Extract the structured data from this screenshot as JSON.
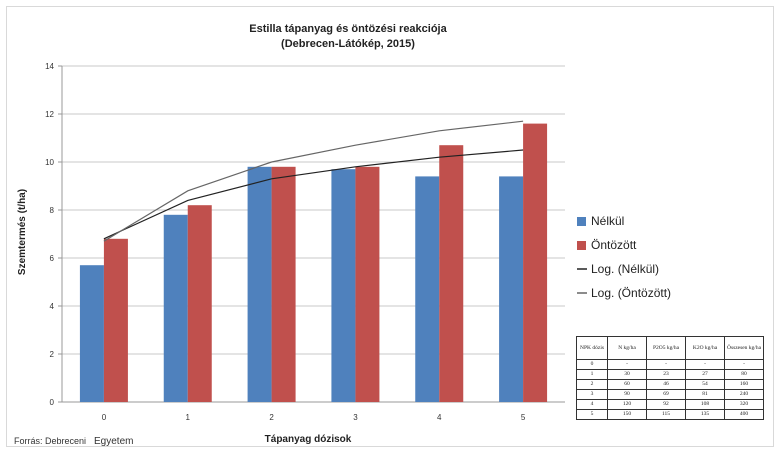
{
  "chart_data": {
    "type": "bar",
    "title_line1": "Estilla tápanyag és öntözési reakciója",
    "title_line2": "(Debrecen-Látókép, 2015)",
    "xlabel": "Tápanyag dózisok",
    "ylabel": "Szemtermés (t/ha)",
    "categories": [
      "0",
      "1",
      "2",
      "3",
      "4",
      "5"
    ],
    "ylim": [
      0,
      14
    ],
    "yticks": [
      "0",
      "2",
      "4",
      "6",
      "8",
      "10",
      "12",
      "14"
    ],
    "grid": true,
    "legend_position": "right",
    "series": [
      {
        "name": "Nélkül",
        "color": "#4f81bd",
        "values": [
          5.7,
          7.8,
          9.8,
          9.7,
          9.4,
          9.4
        ]
      },
      {
        "name": "Öntözött",
        "color": "#c0504d",
        "values": [
          6.8,
          8.2,
          9.8,
          9.8,
          10.7,
          11.6
        ]
      }
    ],
    "trendlines": [
      {
        "name": "Log. (Nélkül)",
        "color": "#222222",
        "values": [
          6.8,
          8.4,
          9.3,
          9.8,
          10.2,
          10.5
        ]
      },
      {
        "name": "Log. (Öntözött)",
        "color": "#666666",
        "values": [
          6.7,
          8.8,
          10.0,
          10.7,
          11.3,
          11.7
        ]
      }
    ]
  },
  "source": {
    "label": "Forrás: Debreceni",
    "emphasis": "Egyetem"
  },
  "npk_table": {
    "headers": [
      "NPK dózis",
      "N kg/ha",
      "P2O5 kg/ha",
      "K2O kg/ha",
      "Összesen kg/ha"
    ],
    "rows": [
      [
        "0",
        "-",
        "-",
        "-",
        "-"
      ],
      [
        "1",
        "30",
        "23",
        "27",
        "80"
      ],
      [
        "2",
        "60",
        "46",
        "54",
        "160"
      ],
      [
        "3",
        "90",
        "69",
        "81",
        "240"
      ],
      [
        "4",
        "120",
        "92",
        "108",
        "320"
      ],
      [
        "5",
        "150",
        "115",
        "135",
        "400"
      ]
    ]
  }
}
